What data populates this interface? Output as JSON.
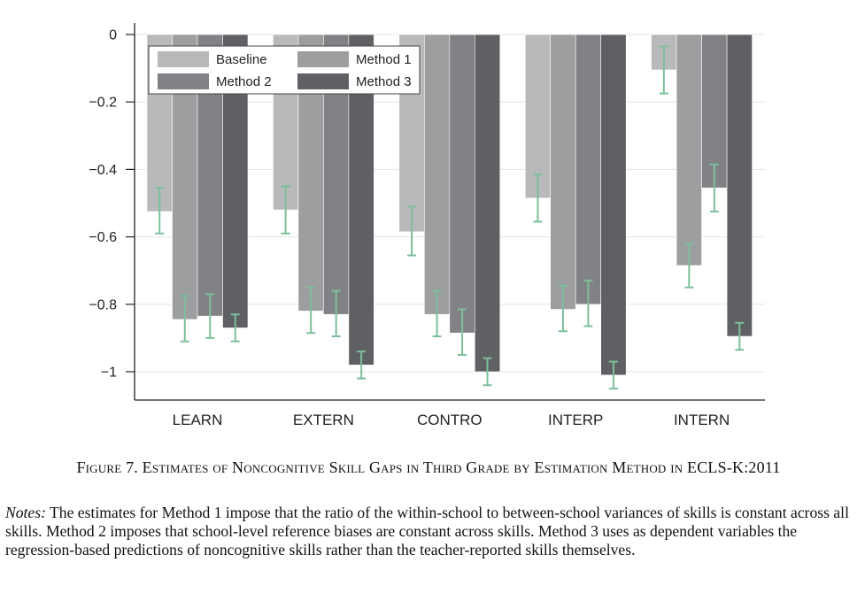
{
  "figure": {
    "caption": "Figure 7. Estimates of Noncognitive Skill Gaps in Third Grade by Estimation Method in ECLS-K:2011",
    "notes_label": "Notes:",
    "notes_text": "The estimates for Method 1 impose that the ratio of the within-school to between-school variances of skills is constant across all skills. Method 2 imposes that school-level reference biases are constant across skills. Method 3 uses as dependent variables the regression-based predictions of noncognitive skills rather than the teacher-reported skills themselves."
  },
  "chart_data": {
    "type": "bar",
    "title": "",
    "xlabel": "",
    "ylabel": "",
    "categories": [
      "LEARN",
      "EXTERN",
      "CONTRO",
      "INTERP",
      "INTERN"
    ],
    "ylim": [
      -1.08,
      0.04
    ],
    "yticks": [
      0,
      -0.2,
      -0.4,
      -0.6,
      -0.8,
      -1
    ],
    "ytick_labels": [
      "0",
      "−0.2",
      "−0.4",
      "−0.6",
      "−0.8",
      "−1"
    ],
    "grid": true,
    "legend_position": "top-left",
    "legend_columns": 2,
    "errorbar_color": "#7dbf9b",
    "series": [
      {
        "name": "Baseline",
        "color": "#b8b9ba",
        "values": [
          -0.525,
          -0.52,
          -0.585,
          -0.485,
          -0.105
        ],
        "ci_low": [
          -0.59,
          -0.59,
          -0.655,
          -0.555,
          -0.175
        ],
        "ci_high": [
          -0.455,
          -0.45,
          -0.51,
          -0.415,
          -0.035
        ]
      },
      {
        "name": "Method 1",
        "color": "#9c9ea0",
        "values": [
          -0.845,
          -0.82,
          -0.83,
          -0.815,
          -0.685
        ],
        "ci_low": [
          -0.91,
          -0.885,
          -0.895,
          -0.88,
          -0.75
        ],
        "ci_high": [
          -0.775,
          -0.75,
          -0.76,
          -0.745,
          -0.62
        ]
      },
      {
        "name": "Method 2",
        "color": "#808285",
        "values": [
          -0.835,
          -0.83,
          -0.885,
          -0.8,
          -0.455
        ],
        "ci_low": [
          -0.9,
          -0.895,
          -0.95,
          -0.865,
          -0.525
        ],
        "ci_high": [
          -0.77,
          -0.76,
          -0.815,
          -0.73,
          -0.385
        ]
      },
      {
        "name": "Method 3",
        "color": "#5e6063",
        "values": [
          -0.87,
          -0.98,
          -1.0,
          -1.01,
          -0.895
        ],
        "ci_low": [
          -0.91,
          -1.02,
          -1.04,
          -1.05,
          -0.935
        ],
        "ci_high": [
          -0.83,
          -0.94,
          -0.96,
          -0.97,
          -0.855
        ]
      }
    ]
  }
}
